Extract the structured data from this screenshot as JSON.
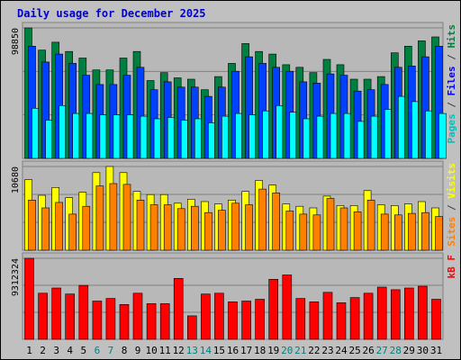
{
  "chart_data": {
    "type": "bar",
    "title": "Daily usage for December 2025",
    "categories": [
      "1",
      "2",
      "3",
      "4",
      "5",
      "6",
      "7",
      "8",
      "9",
      "10",
      "11",
      "12",
      "13",
      "14",
      "15",
      "16",
      "17",
      "18",
      "19",
      "20",
      "21",
      "22",
      "23",
      "24",
      "25",
      "26",
      "27",
      "28",
      "29",
      "30",
      "31"
    ],
    "weekend_days": [
      "6",
      "7",
      "13",
      "14",
      "20",
      "21",
      "27",
      "28"
    ],
    "grid": true,
    "colors": {
      "background": "#c0c0c0",
      "plot": "#b8b8b8",
      "title": "#0000cc",
      "hits": "#008040",
      "files": "#0040ff",
      "pages": "#00ffff",
      "visits": "#ffff00",
      "sites": "#ff8000",
      "kbytes": "#ff0000",
      "weekday_label": "#000000",
      "weekend_label": "#008080"
    },
    "panels": [
      {
        "id": "hits-files-pages",
        "max_label": "98850",
        "max": 98850,
        "legend": [
          "Pages",
          "/",
          "Files",
          "/",
          "Hits"
        ],
        "legend_colors": [
          "#00c0c0",
          "#404040",
          "#0000ff",
          "#404040",
          "#008040"
        ],
        "series": [
          {
            "name": "Hits",
            "color": "#008040",
            "values": [
              98850,
              82000,
              88000,
              81000,
              76000,
              67000,
              67000,
              76000,
              81000,
              59000,
              65000,
              61000,
              60000,
              52000,
              62000,
              72000,
              87000,
              81000,
              79000,
              71000,
              69000,
              65000,
              75000,
              71000,
              60000,
              60000,
              62000,
              80000,
              85000,
              89000,
              92000
            ]
          },
          {
            "name": "Files",
            "color": "#0040ff",
            "values": [
              85000,
              73000,
              79000,
              72000,
              63000,
              56000,
              56000,
              63000,
              69000,
              52000,
              58000,
              54000,
              54000,
              47000,
              54000,
              66000,
              77000,
              72000,
              69000,
              66000,
              58000,
              57000,
              64000,
              63000,
              51000,
              52000,
              56000,
              69000,
              70000,
              77000,
              85000
            ]
          },
          {
            "name": "Pages",
            "color": "#00ffff",
            "values": [
              38000,
              29000,
              40000,
              34000,
              34000,
              33000,
              33000,
              33000,
              32000,
              30000,
              31000,
              29000,
              30000,
              27000,
              32000,
              34000,
              33000,
              36000,
              40000,
              35000,
              30000,
              32000,
              34000,
              34000,
              28000,
              32000,
              37000,
              47000,
              43000,
              36000,
              34000
            ]
          }
        ]
      },
      {
        "id": "visits-sites",
        "max_label": "10680",
        "max": 10680,
        "legend": [
          "Sites",
          "/",
          "Visits"
        ],
        "legend_colors": [
          "#ff8000",
          "#404040",
          "#ffff00"
        ],
        "series": [
          {
            "name": "Visits",
            "color": "#ffff00",
            "values": [
              9000,
              7000,
              8000,
              6700,
              7400,
              9900,
              10680,
              9900,
              7500,
              7100,
              7100,
              6000,
              6500,
              6200,
              5900,
              6400,
              7500,
              8900,
              8300,
              5900,
              5600,
              5400,
              6900,
              5700,
              5700,
              7600,
              5800,
              5700,
              5900,
              6200,
              5400
            ]
          },
          {
            "name": "Sites",
            "color": "#ff8000",
            "values": [
              6400,
              5400,
              6100,
              4600,
              5600,
              8200,
              8500,
              8400,
              6400,
              5800,
              5800,
              5300,
              5600,
              4800,
              5100,
              6000,
              5800,
              7800,
              7300,
              5000,
              4600,
              4500,
              6600,
              5400,
              4900,
              6400,
              4600,
              4500,
              4700,
              4800,
              4300
            ]
          }
        ]
      },
      {
        "id": "kbytes",
        "max_label": "9312324",
        "max": 9312324,
        "legend": [
          "kB",
          "F"
        ],
        "legend_colors": [
          "#ff0000",
          "#ff0000"
        ],
        "series": [
          {
            "name": "kB F",
            "color": "#ff0000",
            "values": [
              9312324,
              5300000,
              5900000,
              5200000,
              6200000,
              4400000,
              4700000,
              4000000,
              5300000,
              4100000,
              4100000,
              7000000,
              2700000,
              5200000,
              5300000,
              4300000,
              4400000,
              4600000,
              6900000,
              7400000,
              4700000,
              4300000,
              5400000,
              4200000,
              4800000,
              5300000,
              6000000,
              5700000,
              5900000,
              6100000,
              4600000
            ]
          }
        ]
      }
    ]
  }
}
